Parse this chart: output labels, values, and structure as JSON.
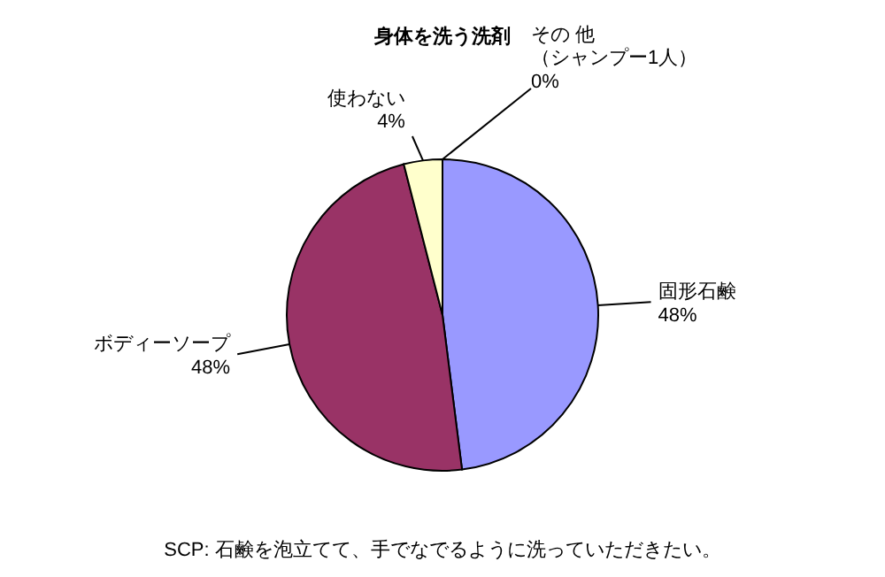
{
  "chart_data": {
    "type": "pie",
    "title": "身体を洗う洗剤",
    "categories": [
      "固形石鹸",
      "ボディーソープ",
      "使わない",
      "その 他（シャンプー1人）"
    ],
    "value_labels": [
      "48%",
      "48%",
      "4%",
      "0%"
    ],
    "values": [
      48,
      48,
      4,
      0
    ],
    "colors": [
      "#9999ff",
      "#993366",
      "#ffffcc",
      "#ffffff"
    ],
    "annotations": [
      "SCP: 石鹸を泡立てて、手でなでるように洗っていただきたい。"
    ]
  }
}
